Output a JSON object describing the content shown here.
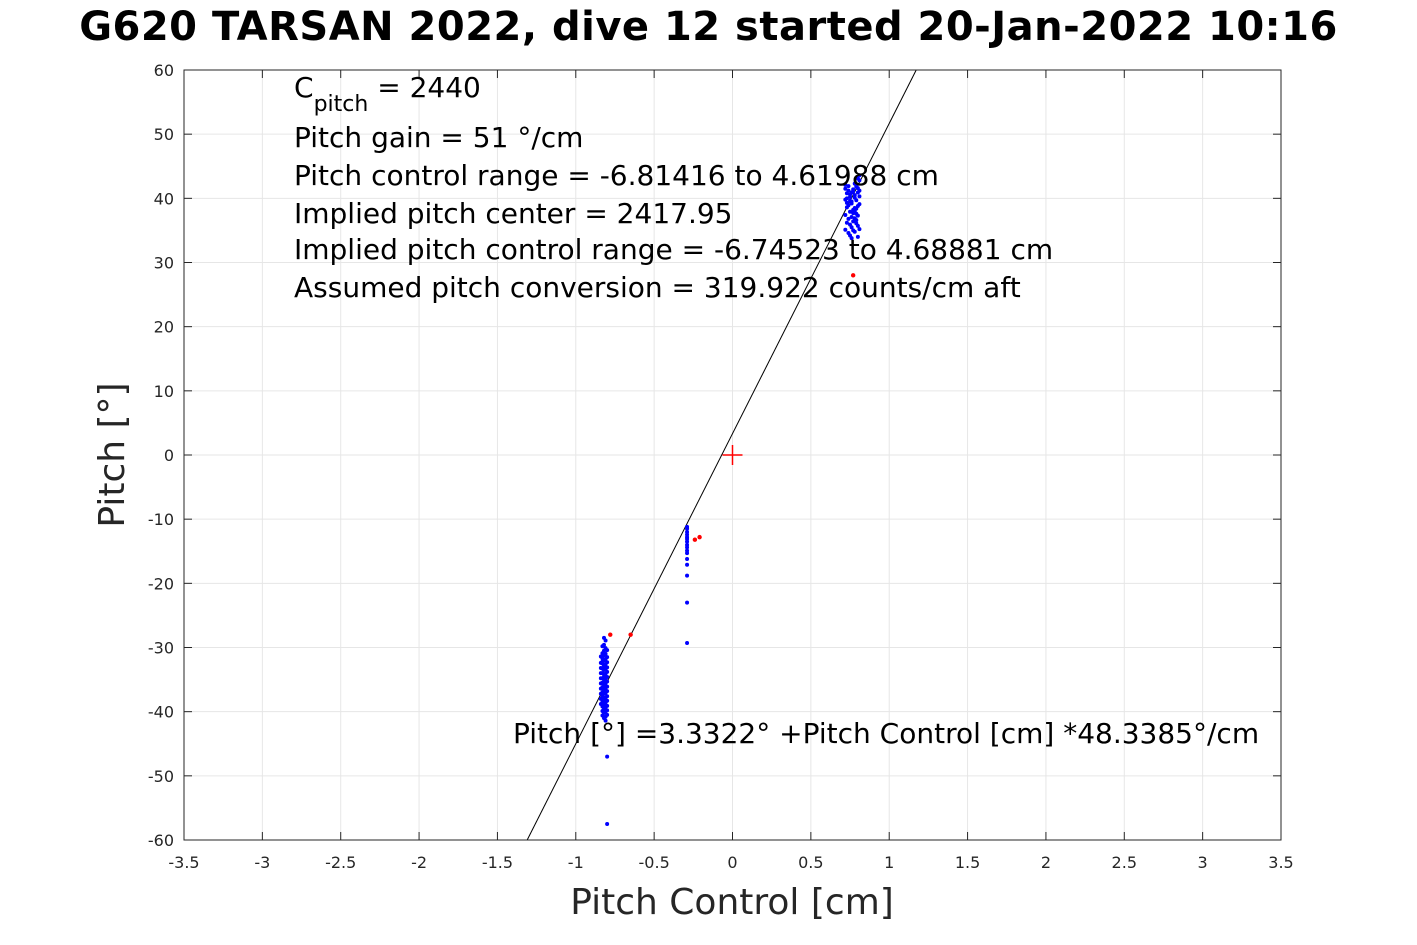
{
  "chart_data": {
    "type": "scatter",
    "title": "G620 TARSAN 2022, dive 12 started 20-Jan-2022 10:16",
    "xlabel": "Pitch Control [cm]",
    "ylabel": "Pitch [°]",
    "xlim": [
      -3.5,
      3.5
    ],
    "ylim": [
      -60,
      60
    ],
    "grid": true,
    "x_ticks": [
      -3.5,
      -3,
      -2.5,
      -2,
      -1.5,
      -1,
      -0.5,
      0,
      0.5,
      1,
      1.5,
      2,
      2.5,
      3,
      3.5
    ],
    "x_tick_labels": [
      "-3.5",
      "-3",
      "-2.5",
      "-2",
      "-1.5",
      "-1",
      "-0.5",
      "0",
      "0.5",
      "1",
      "1.5",
      "2",
      "2.5",
      "3",
      "3.5"
    ],
    "y_ticks": [
      -60,
      -50,
      -40,
      -30,
      -20,
      -10,
      0,
      10,
      20,
      30,
      40,
      50,
      60
    ],
    "y_tick_labels": [
      "-60",
      "-50",
      "-40",
      "-30",
      "-20",
      "-10",
      "0",
      "10",
      "20",
      "30",
      "40",
      "50",
      "60"
    ],
    "annotations": {
      "cpitch_main": "C",
      "cpitch_sub": "pitch",
      "cpitch_value": " = 2440",
      "line2": "Pitch gain = 51 °/cm",
      "line3": "Pitch control range = -6.81416 to 4.61988 cm",
      "line4": "Implied pitch center = 2417.95",
      "line5": "Implied pitch control range = -6.74523 to 4.68881 cm",
      "line6": "Assumed pitch conversion = 319.922 counts/cm aft",
      "fit_label": "Pitch [°] =3.3322° +Pitch Control [cm] *48.3385°/cm"
    },
    "fit_line": {
      "intercept": 3.3322,
      "slope": 48.3385,
      "color": "#000000"
    },
    "center_marker": {
      "x": 0,
      "y": 0,
      "color": "#ff0000"
    },
    "series": [
      {
        "color": "#0000ff",
        "x": [
          0.72,
          0.73,
          0.74,
          0.75,
          0.76,
          0.77,
          0.78,
          0.79,
          0.8,
          0.81,
          0.72,
          0.74,
          0.76,
          0.78,
          0.8,
          0.73,
          0.75,
          0.77,
          0.79,
          0.81,
          0.72,
          0.74,
          0.76,
          0.78,
          0.8,
          0.73,
          0.75,
          0.77,
          0.79,
          0.81,
          0.72,
          0.74,
          0.76,
          0.78,
          0.8,
          0.75,
          0.77,
          0.79,
          0.81,
          0.76,
          0.78,
          0.8,
          0.73,
          0.75,
          0.77,
          0.79,
          0.72,
          0.74,
          0.76,
          0.78,
          0.8,
          0.81,
          0.79,
          0.77,
          0.75,
          0.73,
          0.81,
          0.8,
          0.79,
          0.78,
          -0.29,
          -0.29,
          -0.29,
          -0.29,
          -0.29,
          -0.29,
          -0.29,
          -0.29,
          -0.29,
          -0.29,
          -0.29,
          -0.29,
          -0.29,
          -0.29,
          -0.29,
          -0.29,
          -0.82,
          -0.82,
          -0.82,
          -0.82,
          -0.82,
          -0.82,
          -0.82,
          -0.82,
          -0.82,
          -0.82,
          -0.82,
          -0.82,
          -0.82,
          -0.82,
          -0.82,
          -0.82,
          -0.82,
          -0.82,
          -0.82,
          -0.82,
          -0.81,
          -0.81,
          -0.81,
          -0.81,
          -0.81,
          -0.81,
          -0.81,
          -0.81,
          -0.81,
          -0.81,
          -0.81,
          -0.81,
          -0.81,
          -0.81,
          -0.81,
          -0.81,
          -0.81,
          -0.81,
          -0.81,
          -0.81,
          -0.83,
          -0.83,
          -0.83,
          -0.83,
          -0.83,
          -0.83,
          -0.83,
          -0.83,
          -0.83,
          -0.83,
          -0.83,
          -0.83,
          -0.83,
          -0.83,
          -0.83,
          -0.83,
          -0.8,
          -0.8,
          -0.8,
          -0.8,
          -0.8,
          -0.8,
          -0.8,
          -0.8,
          -0.8,
          -0.8,
          -0.8,
          -0.8,
          -0.8,
          -0.8,
          -0.84,
          -0.84,
          -0.84,
          -0.84,
          -0.84,
          -0.84,
          -0.84,
          -0.84,
          -0.84,
          -0.84,
          -0.8,
          -0.8
        ],
        "y": [
          41.5,
          40.8,
          41.9,
          40.2,
          39.5,
          41.1,
          40.5,
          42.0,
          40.9,
          42.8,
          39.8,
          38.9,
          39.2,
          40.1,
          41.6,
          38.6,
          37.9,
          38.2,
          39.7,
          41.2,
          37.4,
          36.8,
          37.1,
          38.5,
          38.8,
          36.2,
          35.9,
          36.4,
          37.6,
          40.3,
          35.1,
          34.6,
          35.5,
          36.9,
          37.3,
          34.2,
          35.0,
          36.1,
          39.1,
          33.8,
          34.8,
          35.7,
          39.3,
          40.6,
          41.4,
          41.8,
          42.1,
          41.2,
          40.9,
          42.3,
          43.1,
          43.6,
          38.4,
          37.7,
          39.6,
          40.0,
          35.2,
          34.0,
          36.6,
          38.0,
          -11.5,
          -12.0,
          -12.4,
          -12.8,
          -13.1,
          -13.5,
          -14.0,
          -14.4,
          -14.9,
          -15.3,
          -16.2,
          -17.1,
          -18.8,
          -23.0,
          -29.3,
          -11.2,
          -28.5,
          -29.6,
          -30.5,
          -31.2,
          -32.0,
          -32.8,
          -33.5,
          -34.2,
          -35.0,
          -35.8,
          -36.5,
          -37.2,
          -38.0,
          -38.8,
          -39.5,
          -40.2,
          -41.0,
          -33.1,
          -34.6,
          -36.9,
          -28.9,
          -30.1,
          -31.0,
          -31.8,
          -32.6,
          -33.4,
          -34.1,
          -34.9,
          -35.6,
          -36.3,
          -37.1,
          -37.8,
          -38.6,
          -39.3,
          -40.0,
          -40.8,
          -41.4,
          -35.2,
          -36.7,
          -38.2,
          -29.8,
          -30.9,
          -31.7,
          -32.5,
          -33.3,
          -34.0,
          -34.8,
          -35.5,
          -36.2,
          -37.0,
          -37.7,
          -38.5,
          -39.2,
          -39.9,
          -40.6,
          -32.2,
          -30.4,
          -31.5,
          -32.3,
          -33.1,
          -33.8,
          -34.6,
          -35.3,
          -36.1,
          -36.8,
          -37.6,
          -38.3,
          -39.1,
          -39.8,
          -40.5,
          -31.4,
          -32.4,
          -33.2,
          -34.0,
          -34.8,
          -35.6,
          -36.4,
          -37.2,
          -38.0,
          -38.8,
          -47.0,
          -57.5
        ]
      },
      {
        "color": "#ff0000",
        "x": [
          -0.78,
          -0.65,
          -0.24,
          -0.21,
          0.77
        ],
        "y": [
          -28.0,
          -28.0,
          -13.2,
          -12.8,
          28.0
        ]
      }
    ]
  }
}
